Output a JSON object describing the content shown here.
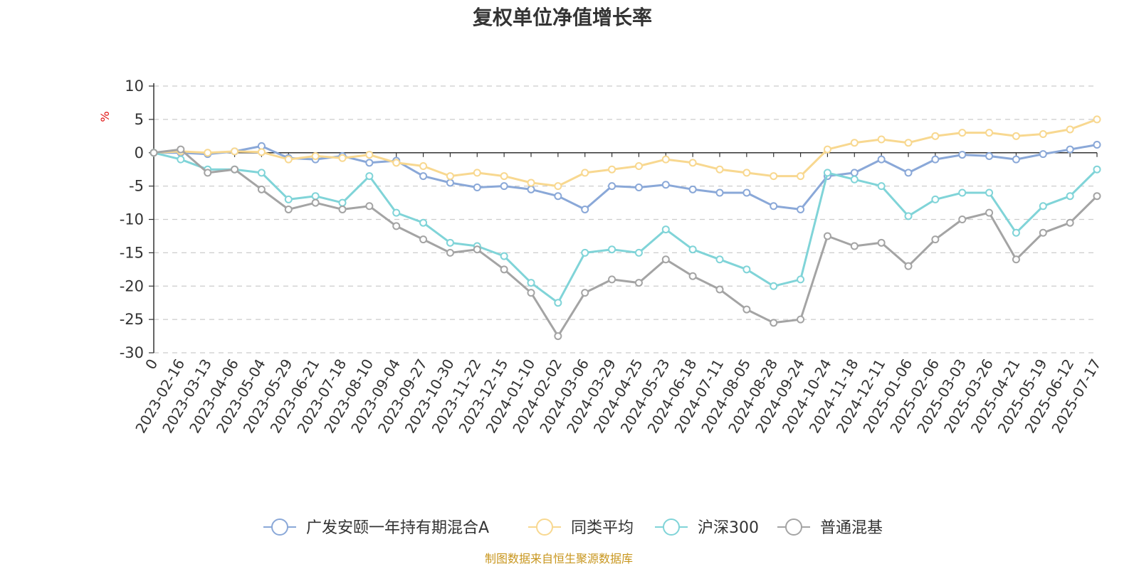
{
  "chart_data": {
    "type": "line",
    "title": "复权单位净值增长率",
    "ylabel": "%",
    "ylim": [
      -30,
      10
    ],
    "yticks": [
      10,
      5,
      0,
      -5,
      -10,
      -15,
      -20,
      -25,
      -30
    ],
    "x_tick_labels": [
      "0",
      "2023-02-16",
      "2023-03-13",
      "2023-04-06",
      "2023-05-04",
      "2023-05-29",
      "2023-06-21",
      "2023-07-18",
      "2023-08-10",
      "2023-09-04",
      "2023-09-27",
      "2023-10-30",
      "2023-11-22",
      "2023-12-15",
      "2024-01-10",
      "2024-02-02",
      "2024-03-06",
      "2024-03-29",
      "2024-04-25",
      "2024-05-23",
      "2024-06-18",
      "2024-07-11",
      "2024-08-05",
      "2024-08-28",
      "2024-09-24",
      "2024-10-24",
      "2024-11-18",
      "2024-12-11",
      "2025-01-06",
      "2025-02-06",
      "2025-03-03",
      "2025-03-26",
      "2025-04-21",
      "2025-05-19",
      "2025-06-12",
      "2025-07-17"
    ],
    "grid": true,
    "legend_position": "bottom",
    "series": [
      {
        "name": "广发安颐一年持有期混合A",
        "color": "#8aa8d8",
        "values": [
          0,
          0,
          -0.2,
          0.2,
          1.0,
          -0.8,
          -1.0,
          -0.5,
          -1.5,
          -1.2,
          -3.5,
          -4.5,
          -5.2,
          -5.0,
          -5.5,
          -6.5,
          -8.5,
          -5.0,
          -5.2,
          -4.8,
          -5.5,
          -6.0,
          -6.0,
          -8.0,
          -8.5,
          -3.5,
          -3.0,
          -1.0,
          -3.0,
          -1.0,
          -0.3,
          -0.5,
          -1.0,
          -0.2,
          0.5,
          1.2
        ]
      },
      {
        "name": "同类平均",
        "color": "#f8d890",
        "values": [
          0,
          0.2,
          0,
          0.2,
          0.1,
          -1.0,
          -0.5,
          -0.8,
          -0.3,
          -1.5,
          -2.0,
          -3.5,
          -3.0,
          -3.5,
          -4.5,
          -5.0,
          -3.0,
          -2.5,
          -2.0,
          -1.0,
          -1.5,
          -2.5,
          -3.0,
          -3.5,
          -3.5,
          0.5,
          1.5,
          2.0,
          1.5,
          2.5,
          3.0,
          3.0,
          2.5,
          2.8,
          3.5,
          5.0
        ]
      },
      {
        "name": "沪深300",
        "color": "#80d4d8",
        "values": [
          0,
          -1.0,
          -2.5,
          -2.5,
          -3.0,
          -7.0,
          -6.5,
          -7.5,
          -3.5,
          -9.0,
          -10.5,
          -13.5,
          -14.0,
          -15.5,
          -19.5,
          -22.5,
          -15.0,
          -14.5,
          -15.0,
          -11.5,
          -14.5,
          -16.0,
          -17.5,
          -20.0,
          -19.0,
          -3.0,
          -4.0,
          -5.0,
          -9.5,
          -7.0,
          -6.0,
          -6.0,
          -12.0,
          -8.0,
          -6.5,
          -2.5
        ]
      },
      {
        "name": "普通混基",
        "color": "#a4a4a4",
        "values": [
          0,
          0.5,
          -3.0,
          -2.5,
          -5.5,
          -8.5,
          -7.5,
          -8.5,
          -8.0,
          -11.0,
          -13.0,
          -15.0,
          -14.5,
          -17.5,
          -21.0,
          -27.5,
          -21.0,
          -19.0,
          -19.5,
          -16.0,
          -18.5,
          -20.5,
          -23.5,
          -25.5,
          -25.0,
          -12.5,
          -14.0,
          -13.5,
          -17.0,
          -13.0,
          -10.0,
          -9.0,
          -16.0,
          -12.0,
          -10.5,
          -6.5
        ]
      }
    ]
  },
  "source_note": "制图数据来自恒生聚源数据库"
}
